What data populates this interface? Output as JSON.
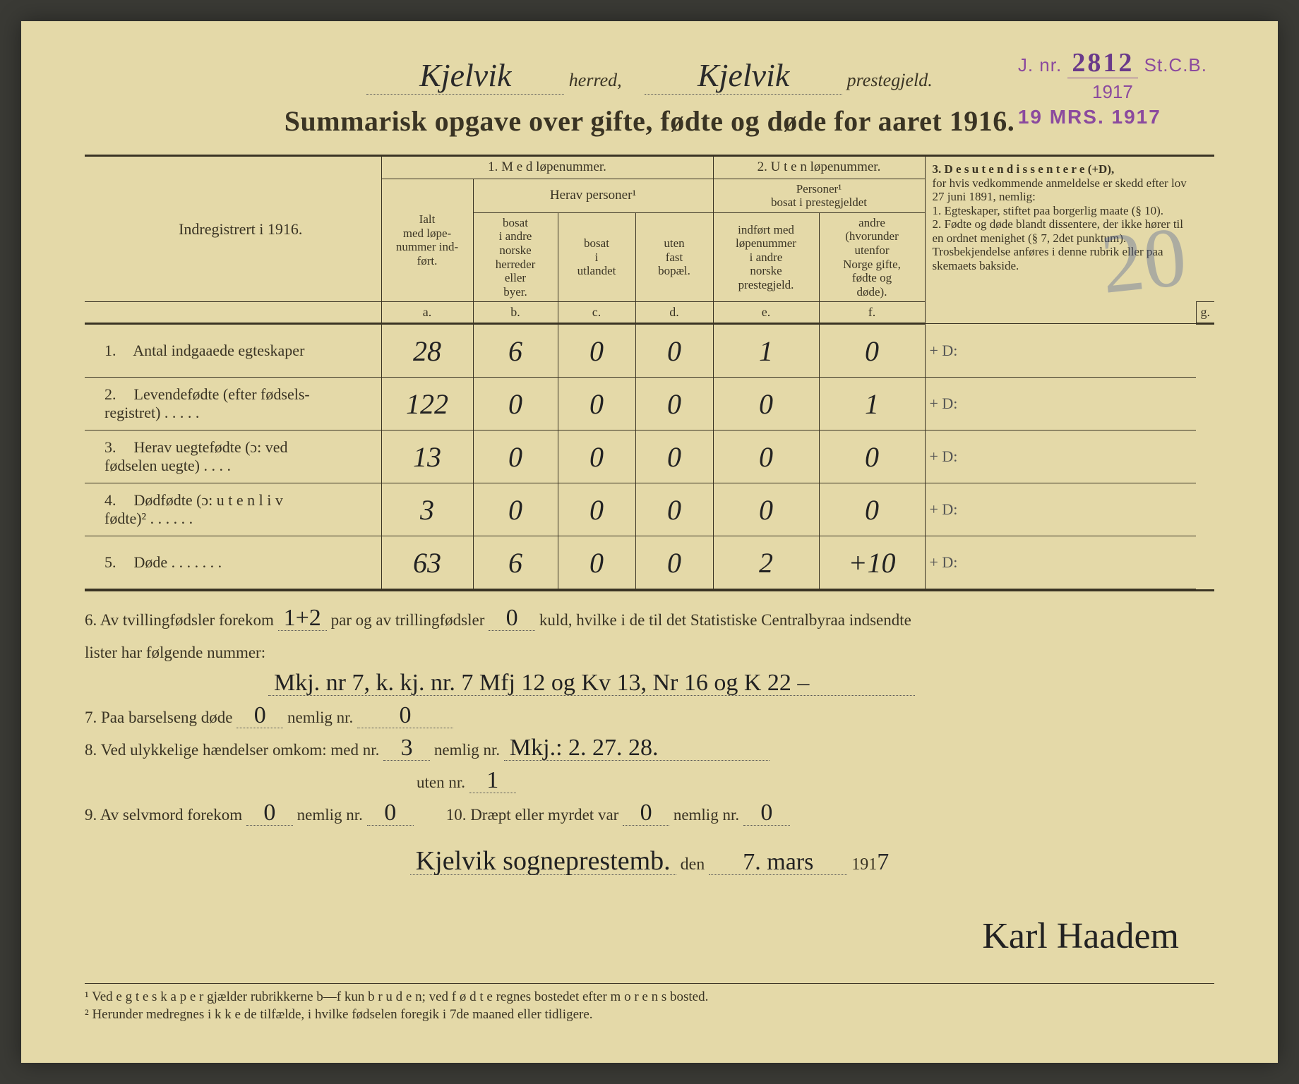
{
  "stamp": {
    "jnr_prefix": "J. nr.",
    "jnr_num": "2812",
    "dept": "St.C.B.",
    "year": "1917",
    "received": "19 MRS. 1917"
  },
  "header": {
    "herred_value": "Kjelvik",
    "herred_label": "herred,",
    "preste_value": "Kjelvik",
    "preste_label": "prestegjeld."
  },
  "title": "Summarisk opgave over gifte, fødte og døde for aaret 1916.",
  "pencil_annotation": "20",
  "table": {
    "indreg_label": "Indregistrert i 1916.",
    "group1": "1.  M e d  løpenummer.",
    "group2": "2. U t e n  løpenummer.",
    "group3_title": "3.  D e s u t e n  d i s s e n t e r e (+D),",
    "group3_body": "for hvis vedkommende anmeldelse er skedd efter lov 27 juni 1891, nemlig:\n1. Egteskaper, stiftet paa borgerlig maate (§ 10).\n2. Fødte og døde blandt dissentere, der ikke hører til en ordnet menighet (§ 7, 2det punktum).\nTrosbekjendelse anføres i denne rubrik eller paa skemaets bakside.",
    "ialt": "Ialt\nmed løpe-\nnummer ind-\nført.",
    "herav": "Herav personer¹",
    "pers2": "Personer¹\nbosat i prestegjeldet",
    "col_b": "bosat\ni andre\nnorske\nherreder\neller\nbyer.",
    "col_c": "bosat\ni\nutlandet",
    "col_d": "uten\nfast\nbopæl.",
    "col_e": "indført med\nløpenummer\ni andre\nnorske\nprestegjeld.",
    "col_f": "andre\n(hvorunder\nutenfor\nNorge gifte,\nfødte og\ndøde).",
    "letters": [
      "a.",
      "b.",
      "c.",
      "d.",
      "e.",
      "f.",
      "g."
    ],
    "rows": [
      {
        "n": "1.",
        "label": "Antal indgaaede egteskaper",
        "a": "28",
        "b": "6",
        "c": "0",
        "d": "0",
        "e": "1",
        "f": "0",
        "g": "+ D:"
      },
      {
        "n": "2.",
        "label": "Levendefødte (efter fødsels-\nregistret) . . . . .",
        "a": "122",
        "b": "0",
        "c": "0",
        "d": "0",
        "e": "0",
        "f": "1",
        "g": "+ D:"
      },
      {
        "n": "3.",
        "label": "Herav uegtefødte (ɔ: ved\nfødselen uegte) . . . .",
        "a": "13",
        "b": "0",
        "c": "0",
        "d": "0",
        "e": "0",
        "f": "0",
        "g": "+ D:"
      },
      {
        "n": "4.",
        "label": "Dødfødte (ɔ: u t e n  l i v\nfødte)² . . . . . .",
        "a": "3",
        "b": "0",
        "c": "0",
        "d": "0",
        "e": "0",
        "f": "0",
        "g": "+ D:"
      },
      {
        "n": "5.",
        "label": "Døde . . . . . . .",
        "a": "63",
        "b": "6",
        "c": "0",
        "d": "0",
        "e": "2",
        "f": "+10",
        "g": "+ D:"
      }
    ]
  },
  "below": {
    "l6a": "6.  Av tvillingfødsler forekom",
    "l6_twin": "1+2",
    "l6b": "par og av trillingfødsler",
    "l6_trip": "0",
    "l6c": "kuld, hvilke i de til det Statistiske Centralbyraa indsendte",
    "l6d": "lister har følgende nummer:",
    "l6_list": "Mkj. nr 7,  k. kj. nr. 7    Mfj 12 og Kv 13,  Nr 16 og K 22 –",
    "l7a": "7.  Paa barselseng døde",
    "l7_v1": "0",
    "l7b": "nemlig nr.",
    "l7_v2": "0",
    "l8a": "8.  Ved ulykkelige hændelser omkom:  med nr.",
    "l8_v1": "3",
    "l8b": "nemlig nr.",
    "l8_v2": "Mkj.: 2. 27. 28.",
    "l8c": "uten nr.",
    "l8_v3": "1",
    "l9a": "9.  Av selvmord forekom",
    "l9_v1": "0",
    "l9b": "nemlig nr.",
    "l9_v2": "0",
    "l10a": "10.  Dræpt eller myrdet var",
    "l10_v1": "0",
    "l10b": "nemlig nr.",
    "l10_v2": "0",
    "sig_place": "Kjelvik sogneprestemb.",
    "sig_den": "den",
    "sig_date": "7. mars",
    "sig_year_prefix": "191",
    "sig_year": "7",
    "signature": "Karl Haadem"
  },
  "footnotes": {
    "f1": "¹ Ved  e g t e s k a p e r  gjælder rubrikkerne b—f kun  b r u d e n;  ved  f ø d t e  regnes bostedet efter  m o r e n s  bosted.",
    "f2": "² Herunder medregnes  i k k e  de tilfælde, i hvilke fødselen foregik i 7de maaned eller tidligere."
  },
  "colors": {
    "paper": "#e4d9a8",
    "ink": "#3a3424",
    "stamp": "#8b4a9e",
    "handwriting": "#222222",
    "pencil": "rgba(70,90,150,.35)"
  }
}
